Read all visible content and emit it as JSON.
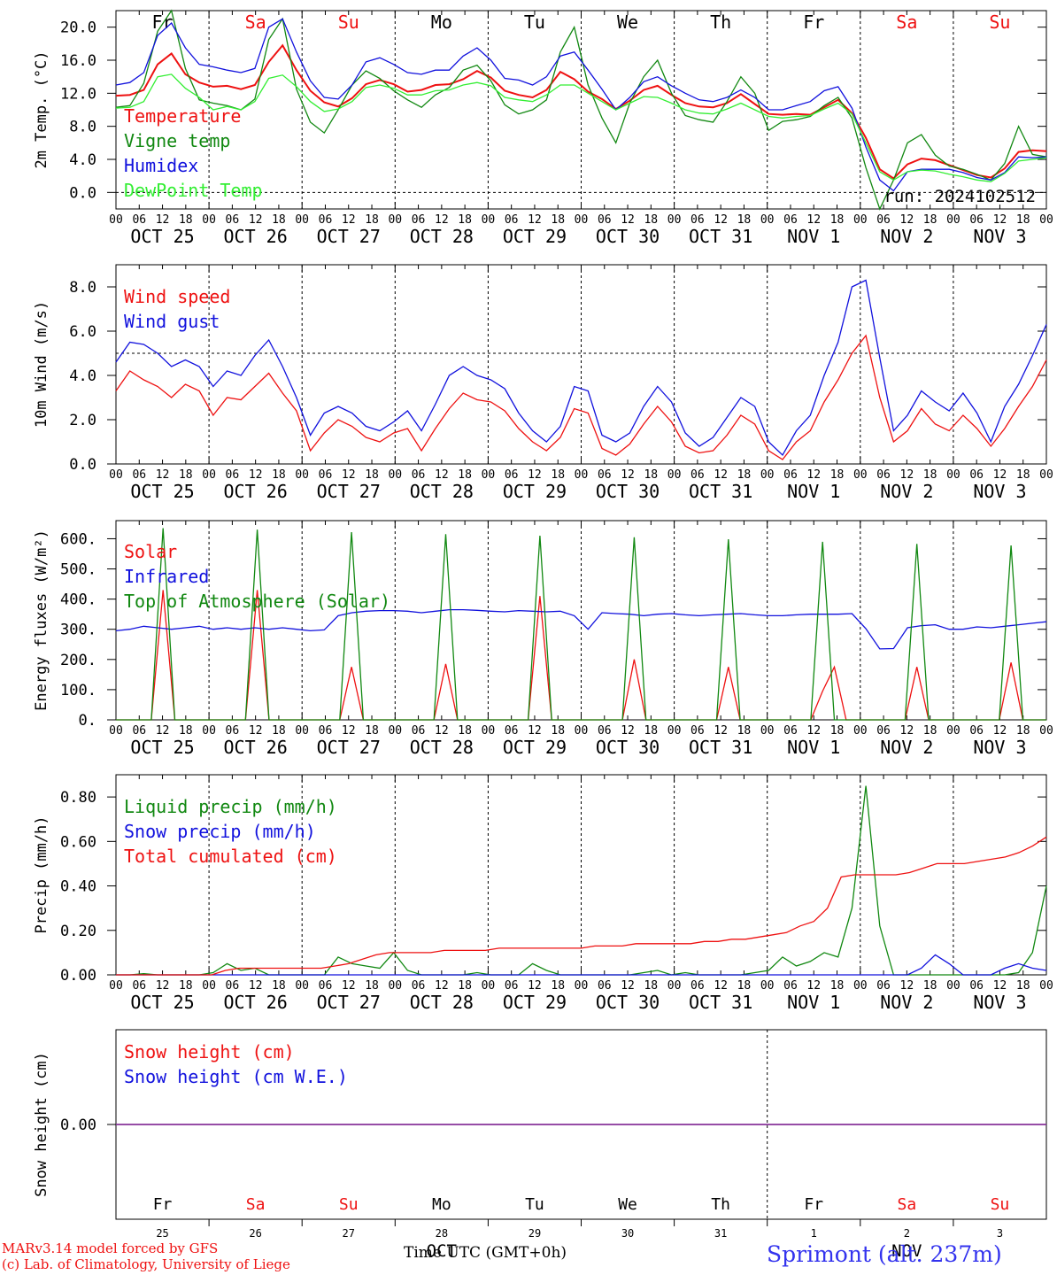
{
  "colors": {
    "red": "#ee1111",
    "darkgreen": "#118811",
    "blue": "#1111dd",
    "lightgreen": "#33ee33",
    "purple": "#883399",
    "black": "#000000"
  },
  "day_names": [
    {
      "label": "Fr",
      "weekend": false
    },
    {
      "label": "Sa",
      "weekend": true
    },
    {
      "label": "Su",
      "weekend": true
    },
    {
      "label": "Mo",
      "weekend": false
    },
    {
      "label": "Tu",
      "weekend": false
    },
    {
      "label": "We",
      "weekend": false
    },
    {
      "label": "Th",
      "weekend": false
    },
    {
      "label": "Fr",
      "weekend": false
    },
    {
      "label": "Sa",
      "weekend": true
    },
    {
      "label": "Su",
      "weekend": true
    }
  ],
  "date_labels": [
    "OCT 25",
    "OCT 26",
    "OCT 27",
    "OCT 28",
    "OCT 29",
    "OCT 30",
    "OCT 31",
    "NOV  1",
    "NOV  2",
    "NOV  3"
  ],
  "hour_ticks": [
    "00",
    "06",
    "12",
    "18"
  ],
  "bottom_day_numbers": [
    "25",
    "26",
    "27",
    "28",
    "29",
    "30",
    "31",
    "1",
    "2",
    "3"
  ],
  "bottom_month_labels": [
    "OCT",
    "NOV"
  ],
  "run_label": "run: 2024102512",
  "footer": {
    "model": "MARv3.14 model forced by GFS",
    "lab": "(c) Lab. of Climatology, University of Liege",
    "xlabel": "Time UTC (GMT+0h)",
    "station": "Sprimont (alt. 237m)"
  },
  "chart_data": [
    {
      "id": "temperature",
      "type": "line",
      "ylabel": "2m Temp. (°C)",
      "x": "hours since 2024-10-25 00 UTC, 3-hourly",
      "ylim": [
        -2,
        22
      ],
      "yticks": [
        "0.0",
        "4.0",
        "8.0",
        "12.0",
        "16.0",
        "20.0"
      ],
      "ytick_values": [
        0,
        4,
        8,
        12,
        16,
        20
      ],
      "series": [
        {
          "name": "Temperature",
          "color": "#ee1111",
          "values": [
            11.7,
            11.8,
            12.4,
            15.5,
            16.8,
            14.3,
            13.3,
            12.8,
            12.9,
            12.5,
            13.0,
            15.8,
            17.8,
            14.8,
            12.3,
            10.9,
            10.4,
            11.4,
            13.1,
            13.6,
            13.1,
            12.2,
            12.4,
            13.0,
            13.1,
            13.7,
            14.7,
            13.9,
            12.3,
            11.8,
            11.5,
            12.4,
            14.6,
            13.7,
            12.2,
            11.3,
            10.1,
            11.1,
            12.4,
            12.9,
            11.8,
            10.8,
            10.4,
            10.3,
            10.8,
            11.9,
            10.7,
            9.5,
            9.4,
            9.5,
            9.4,
            10.3,
            11.2,
            9.6,
            6.6,
            2.8,
            1.7,
            3.4,
            4.1,
            3.9,
            3.3,
            2.7,
            2.1,
            1.8,
            2.9,
            4.9,
            5.1,
            5.0
          ]
        },
        {
          "name": "Vigne temp",
          "color": "#118811",
          "values": [
            10.3,
            10.5,
            13.2,
            19.5,
            22.5,
            15.0,
            11.2,
            10.8,
            10.5,
            10.0,
            11.3,
            18.5,
            21.0,
            12.5,
            8.5,
            7.2,
            10.0,
            13.0,
            14.7,
            13.8,
            12.3,
            11.2,
            10.3,
            11.8,
            12.7,
            14.8,
            15.4,
            13.5,
            10.6,
            9.5,
            10.0,
            11.2,
            17.0,
            20.0,
            13.0,
            9.0,
            6.0,
            10.8,
            14.0,
            16.0,
            12.0,
            9.3,
            8.8,
            8.5,
            11.0,
            14.0,
            12.0,
            7.5,
            8.6,
            8.8,
            9.2,
            10.5,
            11.5,
            9.0,
            3.0,
            -2.5,
            1.5,
            6.0,
            7.0,
            4.5,
            3.2,
            2.8,
            2.2,
            1.5,
            3.5,
            8.0,
            4.6,
            4.3
          ]
        },
        {
          "name": "Humidex",
          "color": "#1111dd",
          "values": [
            13.0,
            13.3,
            14.5,
            19.0,
            20.5,
            17.5,
            15.5,
            15.2,
            14.8,
            14.5,
            15.0,
            20.0,
            21.0,
            17.0,
            13.5,
            11.5,
            11.3,
            13.0,
            15.8,
            16.3,
            15.5,
            14.5,
            14.3,
            14.8,
            14.8,
            16.5,
            17.5,
            16.0,
            13.8,
            13.6,
            13.0,
            14.0,
            16.5,
            17.0,
            14.8,
            12.5,
            10.0,
            11.5,
            13.4,
            14.0,
            12.9,
            12.0,
            11.2,
            11.0,
            11.5,
            12.4,
            11.5,
            10.0,
            10.0,
            10.5,
            11.0,
            12.3,
            12.8,
            10.2,
            5.5,
            1.5,
            0.2,
            2.5,
            2.8,
            2.8,
            2.8,
            2.4,
            1.8,
            1.5,
            2.4,
            4.3,
            4.2,
            4.3
          ]
        },
        {
          "name": "DewPoint Temp",
          "color": "#33ee33",
          "values": [
            10.2,
            10.3,
            11.0,
            14.0,
            14.3,
            12.6,
            11.5,
            10.0,
            10.4,
            10.0,
            11.0,
            13.8,
            14.2,
            12.8,
            11.0,
            9.8,
            10.1,
            11.0,
            12.7,
            13.0,
            12.6,
            11.8,
            11.8,
            12.3,
            12.4,
            13.0,
            13.3,
            12.9,
            11.5,
            11.2,
            11.0,
            11.8,
            13.0,
            13.0,
            12.0,
            11.0,
            10.0,
            10.8,
            11.6,
            11.5,
            10.8,
            10.0,
            9.6,
            9.5,
            10.1,
            10.8,
            10.0,
            9.2,
            9.0,
            9.2,
            9.3,
            10.1,
            10.8,
            9.5,
            6.0,
            2.5,
            1.5,
            2.5,
            2.7,
            2.6,
            2.2,
            1.9,
            1.5,
            1.3,
            2.3,
            3.8,
            4.0,
            4.2
          ]
        }
      ]
    },
    {
      "id": "wind",
      "type": "line",
      "ylabel": "10m Wind (m/s)",
      "ylim": [
        0,
        9
      ],
      "yticks": [
        "0.0",
        "2.0",
        "4.0",
        "6.0",
        "8.0"
      ],
      "ytick_values": [
        0,
        2,
        4,
        6,
        8
      ],
      "reference_line": 5,
      "series": [
        {
          "name": "Wind speed",
          "color": "#ee1111",
          "values": [
            3.3,
            4.2,
            3.8,
            3.5,
            3.0,
            3.6,
            3.3,
            2.2,
            3.0,
            2.9,
            3.5,
            4.1,
            3.2,
            2.4,
            0.6,
            1.4,
            2.0,
            1.7,
            1.2,
            1.0,
            1.4,
            1.6,
            0.6,
            1.6,
            2.5,
            3.2,
            2.9,
            2.8,
            2.4,
            1.6,
            1.0,
            0.6,
            1.2,
            2.5,
            2.3,
            0.7,
            0.4,
            0.9,
            1.8,
            2.6,
            1.9,
            0.8,
            0.5,
            0.6,
            1.3,
            2.2,
            1.8,
            0.6,
            0.2,
            1.0,
            1.5,
            2.8,
            3.8,
            5.0,
            5.8,
            3.0,
            1.0,
            1.5,
            2.5,
            1.8,
            1.5,
            2.2,
            1.6,
            0.8,
            1.6,
            2.6,
            3.5,
            4.7
          ]
        },
        {
          "name": "Wind gust",
          "color": "#1111dd",
          "values": [
            4.6,
            5.5,
            5.4,
            5.0,
            4.4,
            4.7,
            4.4,
            3.5,
            4.2,
            4.0,
            4.9,
            5.6,
            4.4,
            3.0,
            1.3,
            2.3,
            2.6,
            2.3,
            1.7,
            1.5,
            1.9,
            2.4,
            1.5,
            2.7,
            4.0,
            4.4,
            4.0,
            3.8,
            3.4,
            2.3,
            1.5,
            1.0,
            1.7,
            3.5,
            3.3,
            1.3,
            1.0,
            1.4,
            2.6,
            3.5,
            2.8,
            1.4,
            0.8,
            1.2,
            2.1,
            3.0,
            2.6,
            1.0,
            0.4,
            1.5,
            2.2,
            4.0,
            5.5,
            8.0,
            8.3,
            4.8,
            1.5,
            2.2,
            3.3,
            2.8,
            2.4,
            3.2,
            2.3,
            1.0,
            2.6,
            3.6,
            4.9,
            6.3
          ]
        }
      ]
    },
    {
      "id": "energy",
      "type": "line",
      "ylabel": "Energy fluxes (W/m²)",
      "ylim": [
        0,
        660
      ],
      "yticks": [
        "0.",
        "100.",
        "200.",
        "300.",
        "400.",
        "500.",
        "600."
      ],
      "ytick_values": [
        0,
        100,
        200,
        300,
        400,
        500,
        600
      ],
      "series": [
        {
          "name": "Solar",
          "color": "#ee1111",
          "values": [
            0,
            0,
            0,
            0,
            430,
            0,
            0,
            0,
            0,
            0,
            0,
            0,
            430,
            0,
            0,
            0,
            0,
            0,
            0,
            0,
            175,
            0,
            0,
            0,
            0,
            0,
            0,
            0,
            185,
            0,
            0,
            0,
            0,
            0,
            0,
            0,
            410,
            0,
            0,
            0,
            0,
            0,
            0,
            0,
            200,
            0,
            0,
            0,
            0,
            0,
            0,
            0,
            175,
            0,
            0,
            0,
            0,
            0,
            0,
            0,
            95,
            175,
            0,
            0,
            0,
            0,
            0,
            0,
            175,
            0,
            0,
            0,
            0,
            0,
            0,
            0,
            190,
            0,
            0,
            0
          ]
        },
        {
          "name": "Infrared",
          "color": "#1111dd",
          "values": [
            295,
            300,
            310,
            305,
            300,
            305,
            310,
            300,
            305,
            300,
            305,
            300,
            305,
            300,
            295,
            298,
            345,
            355,
            360,
            362,
            362,
            360,
            355,
            360,
            365,
            365,
            363,
            360,
            358,
            362,
            360,
            358,
            360,
            345,
            300,
            355,
            352,
            350,
            345,
            350,
            352,
            348,
            345,
            348,
            350,
            352,
            348,
            345,
            345,
            348,
            350,
            350,
            350,
            352,
            302,
            235,
            236,
            305,
            312,
            315,
            300,
            300,
            308,
            305,
            310,
            315,
            320,
            325
          ]
        },
        {
          "name": "Top of Atmosphere (Solar)",
          "color": "#118811",
          "values": [
            0,
            0,
            0,
            0,
            635,
            0,
            0,
            0,
            0,
            0,
            0,
            0,
            630,
            0,
            0,
            0,
            0,
            0,
            0,
            0,
            622,
            0,
            0,
            0,
            0,
            0,
            0,
            0,
            615,
            0,
            0,
            0,
            0,
            0,
            0,
            0,
            610,
            0,
            0,
            0,
            0,
            0,
            0,
            0,
            605,
            0,
            0,
            0,
            0,
            0,
            0,
            0,
            598,
            0,
            0,
            0,
            0,
            0,
            0,
            0,
            590,
            0,
            0,
            0,
            0,
            0,
            0,
            0,
            583,
            0,
            0,
            0,
            0,
            0,
            0,
            0,
            578,
            0,
            0,
            0
          ]
        }
      ]
    },
    {
      "id": "precip",
      "type": "line",
      "ylabel": "Precip (mm/h)",
      "ylim": [
        0,
        0.9
      ],
      "yticks": [
        "0.00",
        "0.20",
        "0.40",
        "0.60",
        "0.80"
      ],
      "ytick_values": [
        0,
        0.2,
        0.4,
        0.6,
        0.8
      ],
      "series": [
        {
          "name": "Liquid precip (mm/h)",
          "color": "#118811",
          "values": [
            0,
            0,
            0.005,
            0,
            0,
            0,
            0,
            0.01,
            0.05,
            0.02,
            0.03,
            0,
            0,
            0,
            0,
            0,
            0.08,
            0.05,
            0.04,
            0.03,
            0.1,
            0.02,
            0,
            0,
            0,
            0,
            0.01,
            0,
            0,
            0,
            0.05,
            0.02,
            0,
            0,
            0,
            0,
            0,
            0,
            0.01,
            0.02,
            0,
            0.01,
            0,
            0,
            0,
            0,
            0.01,
            0.02,
            0.08,
            0.04,
            0.06,
            0.1,
            0.08,
            0.3,
            0.85,
            0.22,
            0,
            0,
            0,
            0,
            0,
            0,
            0,
            0,
            0,
            0.01,
            0.1,
            0.4
          ]
        },
        {
          "name": "Snow precip (mm/h)",
          "color": "#1111dd",
          "values": [
            0,
            0,
            0,
            0,
            0,
            0,
            0,
            0,
            0,
            0,
            0,
            0,
            0,
            0,
            0,
            0,
            0,
            0,
            0,
            0,
            0,
            0,
            0,
            0,
            0,
            0,
            0,
            0,
            0,
            0,
            0,
            0,
            0,
            0,
            0,
            0,
            0,
            0,
            0,
            0,
            0,
            0,
            0,
            0,
            0,
            0,
            0,
            0,
            0,
            0,
            0,
            0,
            0,
            0,
            0,
            0,
            0,
            0,
            0.03,
            0.09,
            0.05,
            0,
            0,
            0,
            0.03,
            0.05,
            0.03,
            0.02
          ]
        },
        {
          "name": "Total cumulated (cm)",
          "color": "#ee1111",
          "values": [
            0,
            0,
            0,
            0,
            0,
            0,
            0,
            0,
            0.02,
            0.03,
            0.03,
            0.03,
            0.03,
            0.03,
            0.03,
            0.03,
            0.04,
            0.05,
            0.07,
            0.09,
            0.1,
            0.1,
            0.1,
            0.1,
            0.11,
            0.11,
            0.11,
            0.11,
            0.12,
            0.12,
            0.12,
            0.12,
            0.12,
            0.12,
            0.12,
            0.13,
            0.13,
            0.13,
            0.14,
            0.14,
            0.14,
            0.14,
            0.14,
            0.15,
            0.15,
            0.16,
            0.16,
            0.17,
            0.18,
            0.19,
            0.22,
            0.24,
            0.3,
            0.44,
            0.45,
            0.45,
            0.45,
            0.45,
            0.46,
            0.48,
            0.5,
            0.5,
            0.5,
            0.51,
            0.52,
            0.53,
            0.55,
            0.58,
            0.62
          ]
        }
      ]
    },
    {
      "id": "snow",
      "type": "line",
      "ylabel": "Snow height (cm)",
      "ylim": [
        -0.5,
        0.5
      ],
      "yticks": [
        "0.00"
      ],
      "ytick_values": [
        0
      ],
      "series": [
        {
          "name": "Snow height (cm)",
          "color": "#ee1111",
          "values": [
            0,
            0
          ]
        },
        {
          "name": "Snow height (cm W.E.)",
          "color": "#1111dd",
          "values": [
            0,
            0
          ]
        }
      ]
    }
  ]
}
